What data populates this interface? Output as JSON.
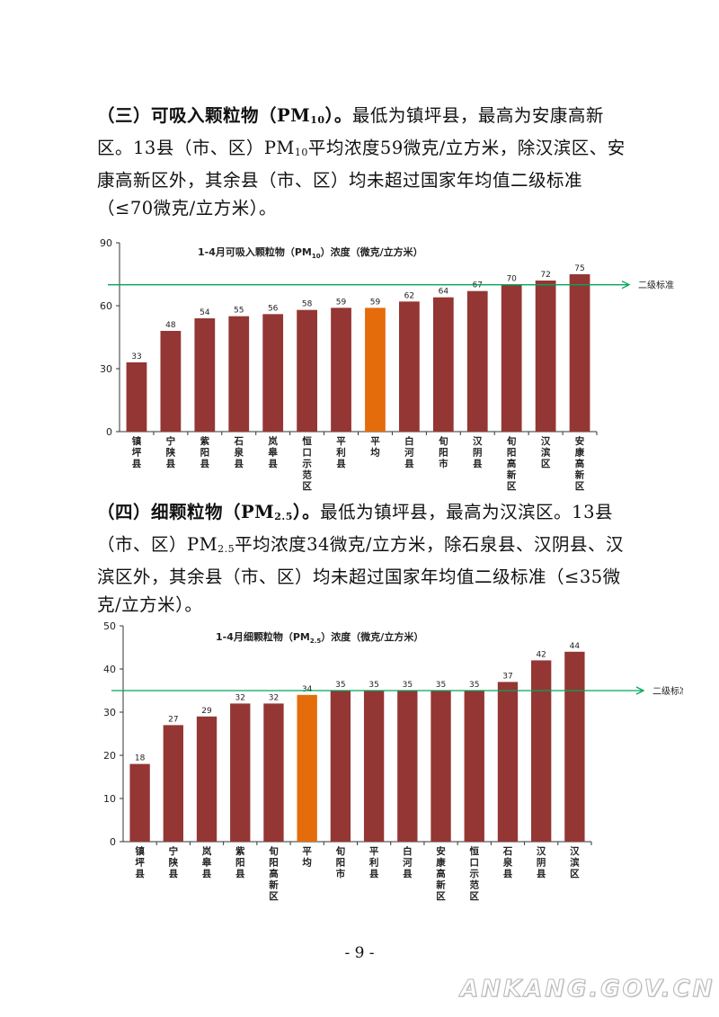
{
  "section3": {
    "heading": "（三）可吸入颗粒物（PM",
    "heading_sub": "10",
    "heading_tail": "）。",
    "text_a": "最低为镇坪县，最高为安康高新区。13县（市、区）PM",
    "text_a_sub": "10",
    "text_b": "平均浓度59微克/立方米，除汉滨区、安康高新区外，其余县（市、区）均未超过国家年均值二级标准（≤70微克/立方米）。"
  },
  "section4": {
    "heading": "（四）细颗粒物（PM",
    "heading_sub": "2.5",
    "heading_tail": "）。",
    "text_a": "最低为镇坪县，最高为汉滨区。13县（市、区）PM",
    "text_a_sub": "2.5",
    "text_b": "平均浓度34微克/立方米，除石泉县、汉阴县、汉滨区外，其余县（市、区）均未超过国家年均值二级标准（≤35微克/立方米）。"
  },
  "colors": {
    "bar": "#943634",
    "highlight": "#E46C0A",
    "standard_line": "#00A65A"
  },
  "page_number": "- 9 -",
  "watermark": "ANKANG.GOV.CN",
  "chart_data": [
    {
      "type": "bar",
      "title": "1-4月可吸入颗粒物（PM10）浓度（微克/立方米）",
      "title_main": "1-4月可吸入颗粒物（PM",
      "title_sub": "10",
      "title_tail": "）浓度（微克/立方米）",
      "categories": [
        "镇坪县",
        "宁陕县",
        "紫阳县",
        "石泉县",
        "岚皋县",
        "恒口示范区",
        "平利县",
        "平均",
        "白河县",
        "旬阳市",
        "汉阴县",
        "旬阳高新区",
        "汉滨区",
        "安康高新区"
      ],
      "values": [
        33,
        48,
        54,
        55,
        56,
        58,
        59,
        59,
        62,
        64,
        67,
        70,
        72,
        75
      ],
      "highlight_index": 7,
      "ylim": [
        0,
        90
      ],
      "yticks": [
        "0",
        "30",
        "60",
        "90"
      ],
      "reference_line": {
        "value": 70,
        "label": "二级标准"
      },
      "grid": false,
      "legend": "none"
    },
    {
      "type": "bar",
      "title": "1-4月细颗粒物（PM2.5）浓度（微克/立方米）",
      "title_main": "1-4月细颗粒物（PM",
      "title_sub": "2.5",
      "title_tail": "）浓度（微克/立方米）",
      "categories": [
        "镇坪县",
        "宁陕县",
        "岚皋县",
        "紫阳县",
        "旬阳高新区",
        "平均",
        "旬阳市",
        "平利县",
        "白河县",
        "安康高新区",
        "恒口示范区",
        "石泉县",
        "汉阴县",
        "汉滨区"
      ],
      "values": [
        18,
        27,
        29,
        32,
        32,
        34,
        35,
        35,
        35,
        35,
        35,
        37,
        42,
        44
      ],
      "highlight_index": 5,
      "ylim": [
        0,
        50
      ],
      "yticks": [
        "0",
        "10",
        "20",
        "30",
        "40",
        "50"
      ],
      "reference_line": {
        "value": 35,
        "label": "二级标准"
      },
      "grid": false,
      "legend": "none"
    }
  ]
}
